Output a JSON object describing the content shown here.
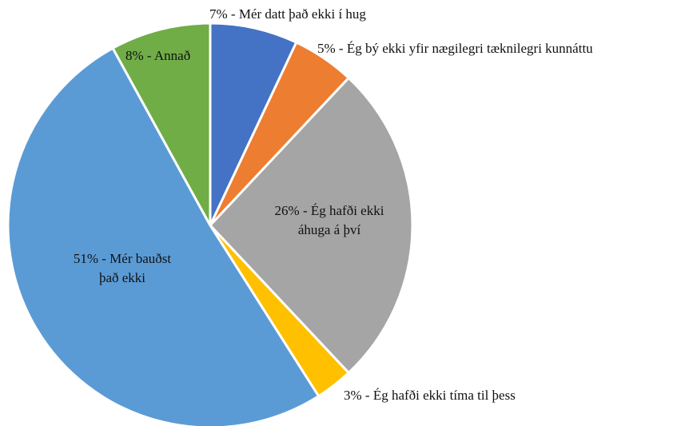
{
  "chart_data": {
    "type": "pie",
    "values": [
      7,
      5,
      26,
      3,
      51,
      8
    ],
    "value_labels": [
      "7% - Mér datt það ekki í hug",
      "5% - Ég bý ekki yfir nægilegri tæknilegri kunnáttu",
      "26% - Ég hafði ekki áhuga á því",
      "3% - Ég hafði ekki tíma til þess",
      "51% - Mér bauðst það ekki",
      "8% - Annað"
    ],
    "colors": [
      "#4472c4",
      "#ed7d31",
      "#a5a5a5",
      "#ffc000",
      "#5b9bd5",
      "#70ad47"
    ]
  }
}
